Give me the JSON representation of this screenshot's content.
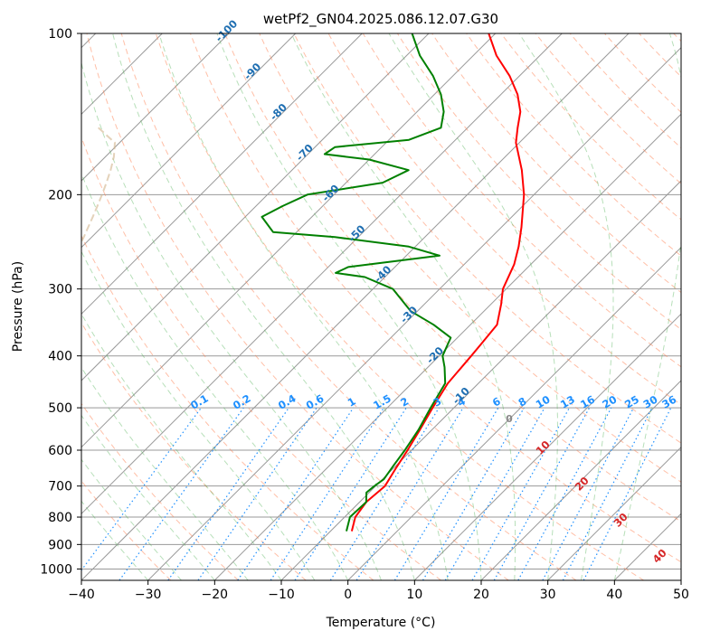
{
  "chart_data": {
    "type": "line",
    "subtype": "skew-t log-p diagram",
    "title": "wetPf2_GN04.2025.086.12.07.G30",
    "xlabel": "Temperature (°C)",
    "ylabel": "Pressure (hPa)",
    "xlim": [
      -40,
      50
    ],
    "ylim": [
      1050,
      100
    ],
    "y_scale": "log",
    "x_ticks": [
      "−40",
      "−30",
      "−20",
      "−10",
      "0",
      "10",
      "20",
      "30",
      "40",
      "50"
    ],
    "x_tick_values": [
      -40,
      -30,
      -20,
      -10,
      0,
      10,
      20,
      30,
      40,
      50
    ],
    "y_ticks": [
      "1000",
      "900",
      "800",
      "700",
      "600",
      "500",
      "400",
      "300",
      "200",
      "100"
    ],
    "y_tick_values": [
      1000,
      900,
      800,
      700,
      600,
      500,
      400,
      300,
      200,
      100
    ],
    "grid": true,
    "series": [
      {
        "role": "temperature",
        "color": "#ff0000",
        "points": [
          [
            850,
            -6.8
          ],
          [
            800,
            -8.4
          ],
          [
            750,
            -9.0
          ],
          [
            700,
            -8.6
          ],
          [
            650,
            -9.6
          ],
          [
            600,
            -10.6
          ],
          [
            550,
            -11.8
          ],
          [
            500,
            -13.2
          ],
          [
            450,
            -14.6
          ],
          [
            400,
            -15.2
          ],
          [
            380,
            -15.5
          ],
          [
            350,
            -16.0
          ],
          [
            320,
            -18.5
          ],
          [
            300,
            -20.5
          ],
          [
            270,
            -22.5
          ],
          [
            250,
            -24.5
          ],
          [
            230,
            -27.0
          ],
          [
            200,
            -31.5
          ],
          [
            180,
            -35.5
          ],
          [
            160,
            -40.5
          ],
          [
            150,
            -42.5
          ],
          [
            140,
            -44.5
          ],
          [
            130,
            -47.5
          ],
          [
            120,
            -51.5
          ],
          [
            110,
            -56.5
          ],
          [
            100,
            -61.0
          ]
        ]
      },
      {
        "role": "dewpoint",
        "color": "#008000",
        "points": [
          [
            850,
            -7.6
          ],
          [
            800,
            -9.2
          ],
          [
            750,
            -9.0
          ],
          [
            720,
            -10.4
          ],
          [
            700,
            -10.2
          ],
          [
            680,
            -9.8
          ],
          [
            640,
            -10.4
          ],
          [
            600,
            -11.0
          ],
          [
            550,
            -12.0
          ],
          [
            500,
            -13.5
          ],
          [
            450,
            -15.0
          ],
          [
            420,
            -17.5
          ],
          [
            400,
            -19.5
          ],
          [
            380,
            -20.5
          ],
          [
            370,
            -21.0
          ],
          [
            350,
            -25.5
          ],
          [
            330,
            -31.0
          ],
          [
            300,
            -37.0
          ],
          [
            285,
            -43.0
          ],
          [
            280,
            -48.0
          ],
          [
            273,
            -47.0
          ],
          [
            260,
            -35.0
          ],
          [
            250,
            -41.0
          ],
          [
            240,
            -53.5
          ],
          [
            235,
            -63.5
          ],
          [
            220,
            -67.5
          ],
          [
            210,
            -66.0
          ],
          [
            200,
            -64.0
          ],
          [
            190,
            -54.5
          ],
          [
            180,
            -52.5
          ],
          [
            172,
            -60.0
          ],
          [
            168,
            -67.5
          ],
          [
            163,
            -67.0
          ],
          [
            158,
            -57.0
          ],
          [
            150,
            -54.0
          ],
          [
            140,
            -56.0
          ],
          [
            130,
            -59.0
          ],
          [
            120,
            -63.0
          ],
          [
            110,
            -68.0
          ],
          [
            100,
            -72.5
          ]
        ]
      }
    ],
    "isotherm_labels": [
      "-100",
      "-90",
      "-80",
      "-70",
      "-60",
      "-50",
      "-40",
      "-30",
      "-20",
      "-10"
    ],
    "isotherm_label_values": [
      -100,
      -90,
      -80,
      -70,
      -60,
      -50,
      -40,
      -30,
      -20,
      -10
    ],
    "zero_label": "0",
    "mixing_ratio_labels": [
      "0.1",
      "0.2",
      "0.4",
      "0.6",
      "1",
      "1.5",
      "2",
      "3",
      "4",
      "6",
      "8",
      "10",
      "13",
      "16",
      "20",
      "25",
      "30",
      "36"
    ],
    "mixing_ratio_values": [
      0.1,
      0.2,
      0.4,
      0.6,
      1,
      1.5,
      2,
      3,
      4,
      6,
      8,
      10,
      13,
      16,
      20,
      25,
      30,
      36
    ],
    "moist_adiabat_labels": [
      "10",
      "20",
      "30",
      "40"
    ],
    "moist_adiabat_values": [
      10,
      20,
      30,
      40
    ],
    "colors": {
      "temperature": "#ff0000",
      "dewpoint": "#008000",
      "isotherm_label": "#1f6fb2",
      "mixing_ratio": "#1e90ff",
      "dry_adiabat": "#ff7f50",
      "moist_adiabat": "#4caf50",
      "moist_label": "#d62728",
      "isobar": "#999999",
      "isotherm": "#999999",
      "trop_curve": "#d2b48c"
    }
  }
}
